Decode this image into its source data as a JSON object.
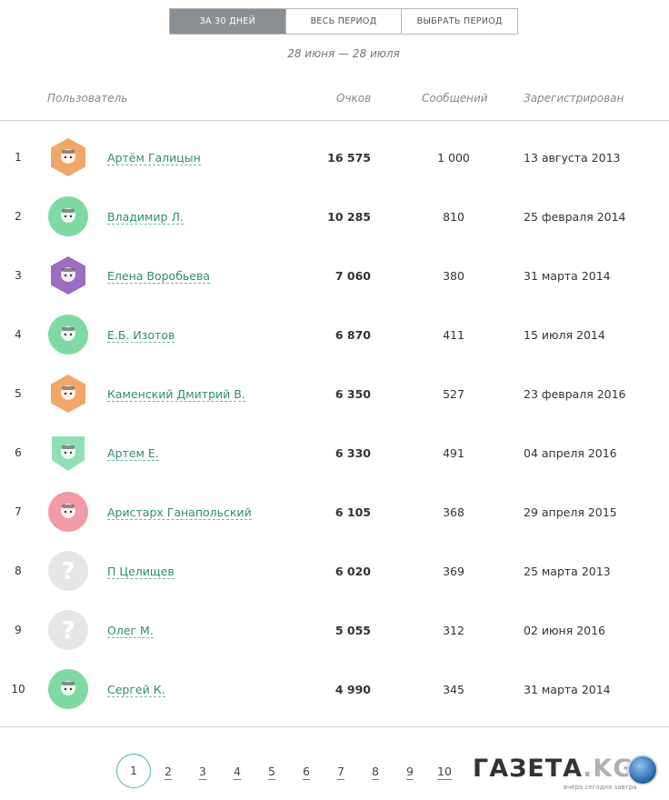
{
  "tabs": [
    {
      "label": "ЗА 30 ДНЕЙ",
      "active": true
    },
    {
      "label": "ВЕСЬ ПЕРИОД",
      "active": false
    },
    {
      "label": "ВЫБРАТЬ ПЕРИОД",
      "active": false
    }
  ],
  "period_label": "28 июня — 28 июля",
  "columns": {
    "user": "Пользователь",
    "points": "Очков",
    "messages": "Сообщений",
    "registered": "Зарегистрирован"
  },
  "rows": [
    {
      "rank": "1",
      "name": "Артём Галицын",
      "points": "16 575",
      "messages": "1 000",
      "registered": "13 августа 2013",
      "avatar": {
        "icon": "avatar-hexagon-icon",
        "color": "#f0a868"
      }
    },
    {
      "rank": "2",
      "name": "Владимир Л.",
      "points": "10 285",
      "messages": "810",
      "registered": "25 февраля 2014",
      "avatar": {
        "icon": "avatar-circle-icon",
        "color": "#7fd9a3"
      }
    },
    {
      "rank": "3",
      "name": "Елена Воробьева",
      "points": "7 060",
      "messages": "380",
      "registered": "31 марта 2014",
      "avatar": {
        "icon": "avatar-hexagon-icon",
        "color": "#9b6cc2"
      }
    },
    {
      "rank": "4",
      "name": "Е.Б. Изотов",
      "points": "6 870",
      "messages": "411",
      "registered": "15 июля 2014",
      "avatar": {
        "icon": "avatar-circle-icon",
        "color": "#7fd9a3"
      }
    },
    {
      "rank": "5",
      "name": "Каменский Дмитрий В.",
      "points": "6 350",
      "messages": "527",
      "registered": "23 февраля 2016",
      "avatar": {
        "icon": "avatar-hexagon-icon",
        "color": "#f0a868"
      }
    },
    {
      "rank": "6",
      "name": "Артем Е.",
      "points": "6 330",
      "messages": "491",
      "registered": "04 апреля 2016",
      "avatar": {
        "icon": "avatar-shield-icon",
        "color": "#8fe0b5"
      }
    },
    {
      "rank": "7",
      "name": "Аристарх Ганапольский",
      "points": "6 105",
      "messages": "368",
      "registered": "29 апреля 2015",
      "avatar": {
        "icon": "avatar-circle-icon",
        "color": "#f29aa6"
      }
    },
    {
      "rank": "8",
      "name": "П Целищев",
      "points": "6 020",
      "messages": "369",
      "registered": "25 марта 2013",
      "avatar": {
        "icon": "question-mark-icon",
        "color": "#e6e6e6"
      }
    },
    {
      "rank": "9",
      "name": "Олег М.",
      "points": "5 055",
      "messages": "312",
      "registered": "02 июня 2016",
      "avatar": {
        "icon": "question-mark-icon",
        "color": "#e6e6e6"
      }
    },
    {
      "rank": "10",
      "name": "Сергей К.",
      "points": "4 990",
      "messages": "345",
      "registered": "31 марта 2014",
      "avatar": {
        "icon": "avatar-circle-icon",
        "color": "#7fd9a3"
      }
    }
  ],
  "pagination": {
    "current": "1",
    "pages": [
      "1",
      "2",
      "3",
      "4",
      "5",
      "6",
      "7",
      "8",
      "9",
      "10"
    ]
  },
  "watermark": {
    "logo": "ГАЗЕТА.KG",
    "tagline": "вчера сегодня завтра"
  }
}
